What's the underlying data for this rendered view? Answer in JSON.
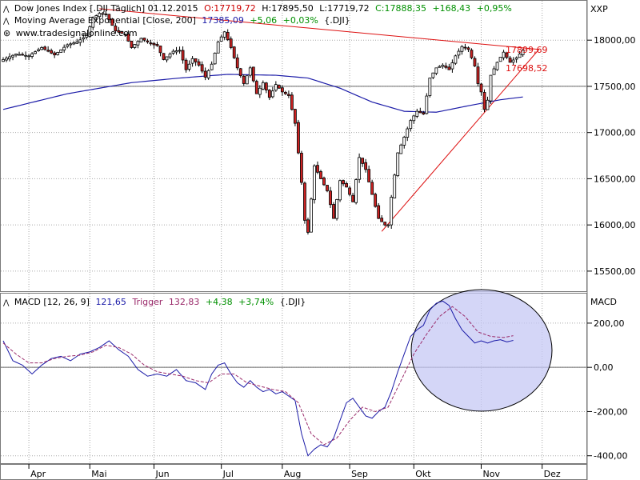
{
  "chart_data": [
    {
      "type": "candlestick",
      "header": {
        "instrument": "Dow Jones Index [.DJI  Täglich] 01.12.2015",
        "open": "O:17719,72",
        "high": "H:17895,50",
        "low": "L:17719,72",
        "close": "C:17888,35",
        "change": "+168,43",
        "change_pct": "+0,95%",
        "symbol": "XXP",
        "source": "www.tradesignalonline.com"
      },
      "ema": {
        "label": "Moving Average Exponential [Close, 200]",
        "value": "17385,09",
        "change": "+5,06",
        "change_pct": "+0,03%",
        "suffix": "{.DJI}",
        "color": "#1c1ca8"
      },
      "colors": {
        "up": "#ffffff",
        "down": "#cc2222",
        "wick": "#000000",
        "trend": "#dd1111",
        "grid": "#a8a8a8"
      },
      "ylim": [
        15300,
        18400
      ],
      "yticks": [
        15500,
        16000,
        16500,
        17000,
        17500,
        18000
      ],
      "ytick_labels": [
        "15500,00",
        "16000,00",
        "16500,00",
        "17000,00",
        "17500,00",
        "18000,00"
      ],
      "ref_line": 17500,
      "x_months": [
        "Apr",
        "Mai",
        "Jun",
        "Jul",
        "Aug",
        "Sep",
        "Okt",
        "Nov",
        "Dez"
      ],
      "x_month_index": [
        8,
        27,
        47,
        68,
        87,
        108,
        128,
        149,
        168
      ],
      "anchors_close": [
        [
          0,
          17790
        ],
        [
          4,
          17850
        ],
        [
          8,
          17830
        ],
        [
          12,
          17920
        ],
        [
          16,
          17840
        ],
        [
          20,
          17950
        ],
        [
          23,
          17980
        ],
        [
          26,
          18050
        ],
        [
          28,
          18240
        ],
        [
          30,
          18290
        ],
        [
          32,
          18280
        ],
        [
          35,
          18100
        ],
        [
          38,
          18060
        ],
        [
          40,
          17920
        ],
        [
          43,
          18020
        ],
        [
          46,
          17960
        ],
        [
          48,
          17940
        ],
        [
          50,
          17790
        ],
        [
          53,
          17880
        ],
        [
          55,
          17890
        ],
        [
          57,
          17680
        ],
        [
          59,
          17800
        ],
        [
          61,
          17730
        ],
        [
          63,
          17600
        ],
        [
          65,
          17740
        ],
        [
          67,
          17980
        ],
        [
          69,
          18090
        ],
        [
          71,
          17920
        ],
        [
          73,
          17700
        ],
        [
          75,
          17530
        ],
        [
          77,
          17700
        ],
        [
          79,
          17420
        ],
        [
          81,
          17540
        ],
        [
          83,
          17380
        ],
        [
          85,
          17520
        ],
        [
          87,
          17440
        ],
        [
          89,
          17400
        ],
        [
          91,
          17100
        ],
        [
          93,
          16460
        ],
        [
          94,
          16050
        ],
        [
          95,
          15920
        ],
        [
          96,
          16280
        ],
        [
          97,
          16640
        ],
        [
          99,
          16500
        ],
        [
          101,
          16370
        ],
        [
          103,
          16070
        ],
        [
          105,
          16480
        ],
        [
          107,
          16410
        ],
        [
          109,
          16250
        ],
        [
          111,
          16730
        ],
        [
          113,
          16600
        ],
        [
          115,
          16330
        ],
        [
          117,
          16070
        ],
        [
          119,
          16000
        ],
        [
          120,
          16000
        ],
        [
          121,
          16300
        ],
        [
          123,
          16780
        ],
        [
          125,
          16950
        ],
        [
          127,
          17130
        ],
        [
          129,
          17230
        ],
        [
          131,
          17200
        ],
        [
          133,
          17590
        ],
        [
          135,
          17700
        ],
        [
          137,
          17730
        ],
        [
          139,
          17680
        ],
        [
          141,
          17830
        ],
        [
          143,
          17930
        ],
        [
          145,
          17900
        ],
        [
          147,
          17720
        ],
        [
          148,
          17530
        ],
        [
          149,
          17440
        ],
        [
          150,
          17250
        ],
        [
          151,
          17350
        ],
        [
          152,
          17620
        ],
        [
          154,
          17760
        ],
        [
          156,
          17870
        ],
        [
          158,
          17760
        ],
        [
          160,
          17810
        ],
        [
          162,
          17890
        ]
      ],
      "n_bars": 163,
      "ema_anchors": [
        [
          0,
          17250
        ],
        [
          20,
          17420
        ],
        [
          40,
          17540
        ],
        [
          55,
          17590
        ],
        [
          70,
          17630
        ],
        [
          85,
          17620
        ],
        [
          95,
          17590
        ],
        [
          105,
          17480
        ],
        [
          115,
          17330
        ],
        [
          125,
          17230
        ],
        [
          135,
          17220
        ],
        [
          145,
          17290
        ],
        [
          155,
          17355
        ],
        [
          162,
          17385
        ]
      ],
      "trendlines": [
        {
          "from": [
            30,
            18340
          ],
          "to": [
            165,
            17900
          ]
        },
        {
          "from": [
            118,
            15930
          ],
          "to": [
            165,
            17900
          ]
        }
      ],
      "level_labels": [
        "17899,69",
        "17698,52"
      ],
      "level_values": [
        17899.69,
        17698.52
      ]
    },
    {
      "type": "line",
      "title": "MACD",
      "header": {
        "label": "MACD [12, 26, 9]",
        "value": "121,65",
        "trigger_label": "Trigger",
        "trigger_value": "132,83",
        "change": "+4,38",
        "change_pct": "+3,74%",
        "suffix": "{.DJI}"
      },
      "axis_title": "MACD",
      "ylim": [
        -430,
        330
      ],
      "yticks": [
        -400,
        -200,
        0,
        200
      ],
      "ytick_labels": [
        "-400,00",
        "-200,00",
        "0,00",
        "200,00"
      ],
      "series": [
        {
          "name": "MACD",
          "color": "#1c1ca8",
          "anchors": [
            [
              0,
              120
            ],
            [
              3,
              30
            ],
            [
              6,
              10
            ],
            [
              9,
              -30
            ],
            [
              12,
              10
            ],
            [
              15,
              40
            ],
            [
              18,
              50
            ],
            [
              21,
              30
            ],
            [
              24,
              60
            ],
            [
              27,
              70
            ],
            [
              30,
              90
            ],
            [
              33,
              120
            ],
            [
              36,
              80
            ],
            [
              39,
              50
            ],
            [
              42,
              -10
            ],
            [
              45,
              -40
            ],
            [
              48,
              -30
            ],
            [
              51,
              -40
            ],
            [
              54,
              -10
            ],
            [
              57,
              -60
            ],
            [
              60,
              -70
            ],
            [
              63,
              -100
            ],
            [
              65,
              -30
            ],
            [
              67,
              10
            ],
            [
              69,
              20
            ],
            [
              71,
              -30
            ],
            [
              73,
              -70
            ],
            [
              75,
              -90
            ],
            [
              77,
              -60
            ],
            [
              79,
              -90
            ],
            [
              81,
              -110
            ],
            [
              83,
              -100
            ],
            [
              85,
              -120
            ],
            [
              87,
              -110
            ],
            [
              89,
              -130
            ],
            [
              91,
              -150
            ],
            [
              93,
              -300
            ],
            [
              95,
              -400
            ],
            [
              97,
              -370
            ],
            [
              99,
              -350
            ],
            [
              101,
              -360
            ],
            [
              103,
              -320
            ],
            [
              105,
              -240
            ],
            [
              107,
              -160
            ],
            [
              109,
              -140
            ],
            [
              111,
              -180
            ],
            [
              113,
              -220
            ],
            [
              115,
              -230
            ],
            [
              117,
              -200
            ],
            [
              119,
              -180
            ],
            [
              121,
              -110
            ],
            [
              123,
              -20
            ],
            [
              125,
              60
            ],
            [
              127,
              140
            ],
            [
              129,
              170
            ],
            [
              131,
              190
            ],
            [
              133,
              260
            ],
            [
              135,
              290
            ],
            [
              137,
              300
            ],
            [
              139,
              280
            ],
            [
              141,
              220
            ],
            [
              143,
              170
            ],
            [
              145,
              140
            ],
            [
              147,
              110
            ],
            [
              149,
              120
            ],
            [
              151,
              110
            ],
            [
              153,
              120
            ],
            [
              155,
              125
            ],
            [
              157,
              115
            ],
            [
              159,
              122
            ]
          ]
        },
        {
          "name": "Trigger",
          "color": "#9a2a6a",
          "anchors": [
            [
              0,
              110
            ],
            [
              4,
              60
            ],
            [
              8,
              20
            ],
            [
              12,
              20
            ],
            [
              16,
              40
            ],
            [
              20,
              50
            ],
            [
              24,
              55
            ],
            [
              28,
              70
            ],
            [
              32,
              100
            ],
            [
              36,
              90
            ],
            [
              40,
              60
            ],
            [
              44,
              10
            ],
            [
              48,
              -20
            ],
            [
              52,
              -30
            ],
            [
              56,
              -40
            ],
            [
              60,
              -60
            ],
            [
              64,
              -70
            ],
            [
              68,
              -30
            ],
            [
              72,
              -30
            ],
            [
              76,
              -70
            ],
            [
              80,
              -85
            ],
            [
              84,
              -100
            ],
            [
              88,
              -110
            ],
            [
              92,
              -160
            ],
            [
              96,
              -300
            ],
            [
              100,
              -350
            ],
            [
              104,
              -320
            ],
            [
              108,
              -240
            ],
            [
              112,
              -180
            ],
            [
              116,
              -200
            ],
            [
              120,
              -180
            ],
            [
              124,
              -60
            ],
            [
              128,
              60
            ],
            [
              132,
              150
            ],
            [
              136,
              230
            ],
            [
              140,
              275
            ],
            [
              144,
              230
            ],
            [
              148,
              160
            ],
            [
              152,
              140
            ],
            [
              156,
              135
            ],
            [
              159,
              143
            ]
          ]
        }
      ],
      "circle_color": "#c6c8f4"
    }
  ]
}
